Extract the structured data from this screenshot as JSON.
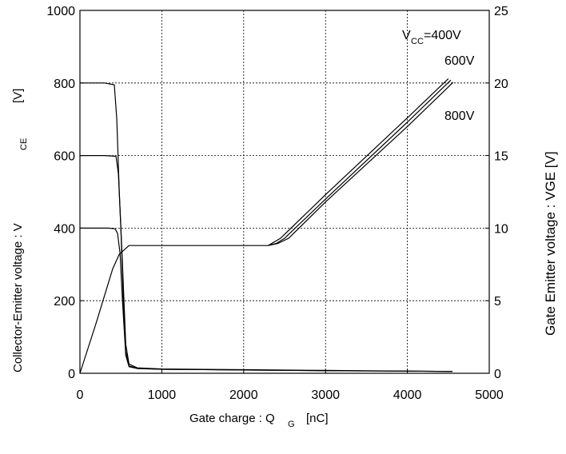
{
  "chart_data": {
    "type": "line",
    "xlabel": "Gate charge : Q",
    "xlabel_sub": "G",
    "xlabel_unit": "[nC]",
    "ylabel_left": "Collector-Emitter voltage : V",
    "ylabel_left_sub": "CE",
    "ylabel_left_unit": "[V]",
    "ylabel_right": "Gate Emitter voltage : VGE [V]",
    "xlim": [
      0,
      5000
    ],
    "ylim_left": [
      0,
      1000
    ],
    "ylim_right": [
      0,
      25
    ],
    "x_ticks": [
      "0",
      "1000",
      "2000",
      "3000",
      "4000",
      "5000"
    ],
    "y_left_ticks": [
      "0",
      "200",
      "400",
      "600",
      "800",
      "1000"
    ],
    "y_right_ticks": [
      "0",
      "5",
      "10",
      "15",
      "20",
      "25"
    ],
    "grid": true,
    "annotations": {
      "vcc_prefix": "V",
      "vcc_sub": "CC",
      "vcc_400": "=400V",
      "vcc_600": "600V",
      "vcc_800": "800V"
    },
    "series": [
      {
        "axis": "left",
        "x": [
          0,
          300,
          420,
          450,
          480,
          520,
          560,
          600,
          700,
          1000,
          2000,
          3000,
          4000,
          4550
        ],
        "y": [
          800,
          800,
          795,
          700,
          500,
          300,
          80,
          25,
          15,
          12,
          10,
          8,
          6,
          5
        ]
      },
      {
        "axis": "left",
        "x": [
          0,
          300,
          440,
          470,
          500,
          530,
          560,
          600,
          700,
          1000,
          2000,
          3000,
          4000,
          4550
        ],
        "y": [
          600,
          600,
          598,
          550,
          400,
          200,
          60,
          20,
          14,
          11,
          9,
          7,
          6,
          5
        ]
      },
      {
        "axis": "left",
        "x": [
          0,
          350,
          430,
          460,
          490,
          520,
          560,
          600,
          700,
          1000,
          2000,
          3000,
          4000,
          4550
        ],
        "y": [
          400,
          400,
          398,
          385,
          330,
          200,
          50,
          18,
          13,
          11,
          9,
          7,
          6,
          5
        ]
      },
      {
        "axis": "right",
        "x": [
          0,
          200,
          400,
          480,
          600,
          1000,
          2000,
          2300,
          2450,
          3000,
          4000,
          4500
        ],
        "y": [
          0,
          3.5,
          7.2,
          8.2,
          8.8,
          8.8,
          8.8,
          8.8,
          9.3,
          12.3,
          17.6,
          20.3
        ]
      },
      {
        "axis": "right",
        "x": [
          2300,
          2400,
          2500,
          3000,
          4000,
          4530
        ],
        "y": [
          8.8,
          8.95,
          9.3,
          12.0,
          17.3,
          20.2
        ]
      },
      {
        "axis": "right",
        "x": [
          2300,
          2420,
          2550,
          3000,
          4000,
          4560
        ],
        "y": [
          8.8,
          8.95,
          9.3,
          11.8,
          17.0,
          20.05
        ]
      }
    ]
  }
}
